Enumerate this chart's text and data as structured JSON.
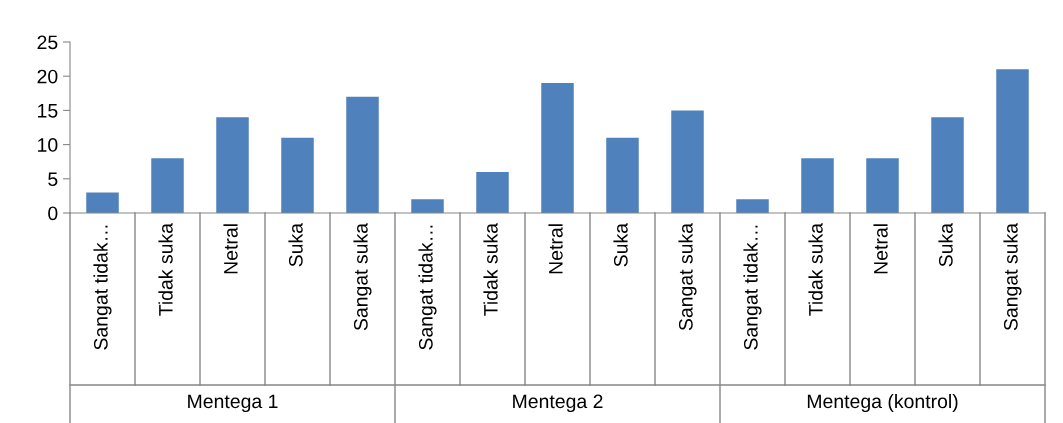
{
  "chart_data": {
    "type": "bar",
    "categories": [
      "Sangat tidak…",
      "Tidak suka",
      "Netral",
      "Suka",
      "Sangat suka",
      "Sangat tidak…",
      "Tidak suka",
      "Netral",
      "Suka",
      "Sangat suka",
      "Sangat tidak…",
      "Tidak suka",
      "Netral",
      "Suka",
      "Sangat suka"
    ],
    "values": [
      3,
      8,
      14,
      11,
      17,
      2,
      6,
      19,
      11,
      15,
      2,
      8,
      8,
      14,
      21
    ],
    "color": "#4f81bd",
    "ylim": [
      0,
      25
    ],
    "yticks": [
      0,
      5,
      10,
      15,
      20,
      25
    ],
    "annotations": [
      "Mentega 1",
      "Mentega 2",
      "Mentega (kontrol)"
    ],
    "grid": false,
    "legend": false
  }
}
